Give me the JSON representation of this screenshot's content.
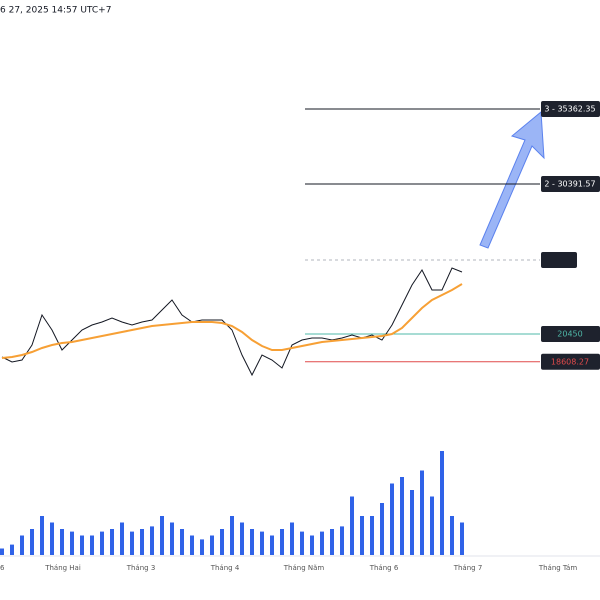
{
  "header": "6 27, 2025 14:57 UTC+7",
  "chart_data": {
    "type": "line",
    "ylim": [
      16076,
      42585
    ],
    "series": [
      {
        "color": "#131722",
        "values": [
          18926,
          18594,
          18727,
          19721,
          21709,
          20715,
          19390,
          20052,
          20715,
          21046,
          21245,
          21510,
          21245,
          21046,
          21245,
          21378,
          22040,
          22703,
          21709,
          21245,
          21378,
          21378,
          21378,
          20715,
          19058,
          17733,
          19058,
          18727,
          18197,
          19721,
          20052,
          20185,
          20185,
          20052,
          20185,
          20384,
          20185,
          20384,
          20052,
          21046,
          22372,
          23697,
          24691,
          23366,
          23366,
          24824,
          24559
        ]
      },
      {
        "color": "#f7a035",
        "values": [
          18860,
          18926,
          19058,
          19257,
          19522,
          19721,
          19854,
          19920,
          20052,
          20185,
          20317,
          20450,
          20583,
          20715,
          20848,
          20980,
          21046,
          21113,
          21179,
          21245,
          21245,
          21245,
          21179,
          20980,
          20583,
          20052,
          19655,
          19390,
          19390,
          19522,
          19655,
          19787,
          19920,
          19986,
          20052,
          20119,
          20185,
          20251,
          20317,
          20450,
          20848,
          21510,
          22173,
          22703,
          23034,
          23366,
          23764
        ]
      }
    ],
    "levels": [
      {
        "label": "3 - 35362.35",
        "value": 35362.35,
        "color": "#131722"
      },
      {
        "label": "2 - 30391.57",
        "value": 30391.57,
        "color": "#131722"
      },
      {
        "label": "20450",
        "value": 20450,
        "color": "#4fb8a8"
      },
      {
        "label": "18608.27",
        "value": 18608.27,
        "color": "#e04a4a"
      }
    ],
    "check_label": "✓",
    "volume": {
      "color": "#2f62e8",
      "ylim": [
        0,
        100
      ],
      "values": [
        5,
        8,
        15,
        20,
        30,
        25,
        20,
        18,
        15,
        15,
        18,
        20,
        25,
        18,
        20,
        22,
        30,
        25,
        20,
        15,
        12,
        15,
        20,
        30,
        25,
        20,
        18,
        15,
        20,
        25,
        18,
        15,
        18,
        20,
        22,
        45,
        30,
        30,
        40,
        55,
        60,
        50,
        65,
        45,
        80,
        30,
        25
      ]
    },
    "x_labels": [
      "6",
      "Tháng Hai",
      "Tháng 3",
      "Tháng 4",
      "Tháng Năm",
      "Tháng 6",
      "Tháng 7",
      "Tháng Tám"
    ]
  }
}
